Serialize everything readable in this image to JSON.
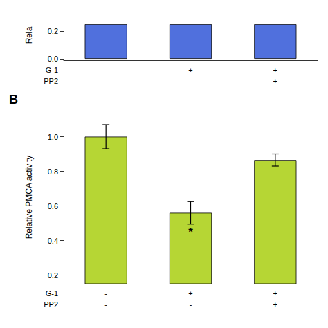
{
  "chart_data": [
    {
      "type": "bar",
      "ylabel": "Rela",
      "values": [
        0.25,
        0.25,
        0.25
      ],
      "ylim": [
        -0.01,
        0.35
      ],
      "yticks": [
        {
          "value": 0.0,
          "label": "0.0"
        },
        0.2
      ],
      "grid": false,
      "row_labels": [
        {
          "name": "G-1",
          "labels": [
            "-",
            "+",
            "+"
          ]
        },
        {
          "name": "PP2",
          "labels": [
            "-",
            "-",
            "+"
          ]
        }
      ]
    },
    {
      "type": "bar",
      "title": "B",
      "ylabel": "Relative PMCA activity",
      "values": [
        1.0,
        0.56,
        0.865
      ],
      "errors": [
        0.07,
        0.065,
        0.035
      ],
      "ylim": [
        0.15,
        1.15
      ],
      "yticks": [
        0.2,
        0.4,
        0.6,
        0.8,
        {
          "value": 1.0,
          "label": "1.0"
        }
      ],
      "grid": false,
      "row_labels": [
        {
          "name": "G-1",
          "labels": [
            "-",
            "+",
            "+"
          ]
        },
        {
          "name": "PP2",
          "labels": [
            "-",
            "-",
            "+"
          ]
        }
      ],
      "annotations": [
        {
          "text": "*",
          "index": 1
        }
      ]
    }
  ]
}
